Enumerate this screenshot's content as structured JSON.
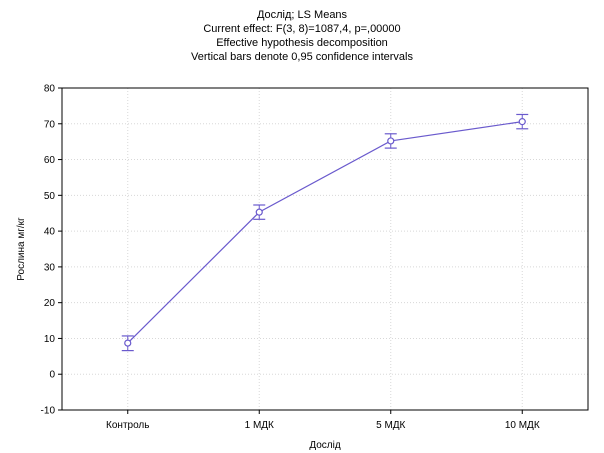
{
  "chart_data": {
    "type": "line",
    "title": "Дослід; LS Means",
    "subtitle_lines": [
      "Current effect: F(3, 8)=1087,4, p=,00000",
      "Effective hypothesis decomposition",
      "Vertical bars denote 0,95 confidence intervals"
    ],
    "xlabel": "Дослід",
    "ylabel": "Рослина мг/кг",
    "categories": [
      "Контроль",
      "1 МДК",
      "5 МДК",
      "10 МДК"
    ],
    "series": [
      {
        "values": [
          8.7,
          45.3,
          65.2,
          70.6
        ],
        "ci_lower": [
          6.6,
          43.3,
          63.2,
          68.6
        ],
        "ci_upper": [
          10.7,
          47.3,
          67.2,
          72.6
        ]
      }
    ],
    "ylim": [
      -10,
      80
    ],
    "yticks": [
      -10,
      0,
      10,
      20,
      30,
      40,
      50,
      60,
      70,
      80
    ],
    "grid": true,
    "line_color": "#6a5acd",
    "marker": "open-circle"
  }
}
